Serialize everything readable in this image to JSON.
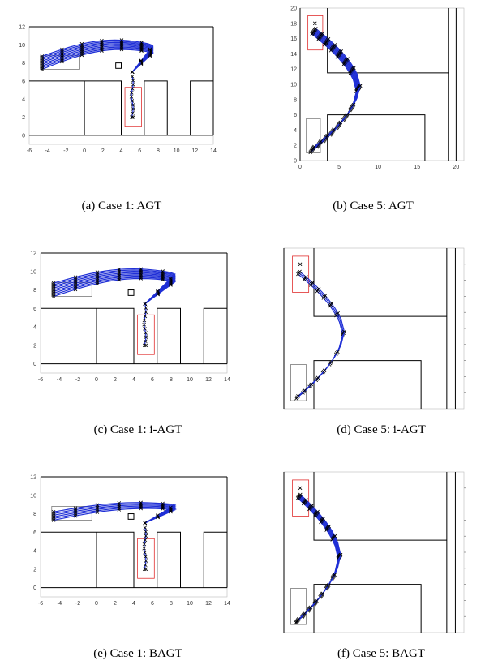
{
  "panels": [
    {
      "id": "a",
      "caption": "(a)  Case 1:  AGT",
      "kind": "case1",
      "xticks": [
        -6,
        -4,
        -2,
        0,
        2,
        4,
        6,
        8,
        10,
        12,
        14
      ],
      "yticks": [
        0,
        2,
        4,
        6,
        8,
        10,
        12
      ]
    },
    {
      "id": "b",
      "caption": "(b)  Case 5:  AGT",
      "kind": "case5",
      "xticks": [
        0,
        5,
        10,
        15,
        20
      ],
      "yticks": [
        0,
        2,
        4,
        6,
        8,
        10,
        12,
        14,
        16,
        18,
        20
      ]
    },
    {
      "id": "c",
      "caption": "(c)  Case 1:  i-AGT",
      "kind": "case1",
      "xticks": [
        -6,
        -4,
        -2,
        0,
        2,
        4,
        6,
        8,
        10,
        12,
        14
      ],
      "yticks": [
        0,
        2,
        4,
        6,
        8,
        10,
        12
      ]
    },
    {
      "id": "d",
      "caption": "(d)  Case 5:  i-AGT",
      "kind": "case5",
      "xticks": [],
      "yticks": []
    },
    {
      "id": "e",
      "caption": "(e)  Case 1:  BAGT",
      "kind": "case1",
      "xticks": [
        -6,
        -4,
        -2,
        0,
        2,
        4,
        6,
        8,
        10,
        12,
        14
      ],
      "yticks": [
        0,
        2,
        4,
        6,
        8,
        10,
        12
      ]
    },
    {
      "id": "f",
      "caption": "(f)  Case 5:  BAGT",
      "kind": "case5",
      "xticks": [],
      "yticks": []
    }
  ],
  "colors": {
    "path": "#1f2fd6",
    "marker": "#000000",
    "goal_box": "#e03030",
    "wall": "#000000"
  }
}
